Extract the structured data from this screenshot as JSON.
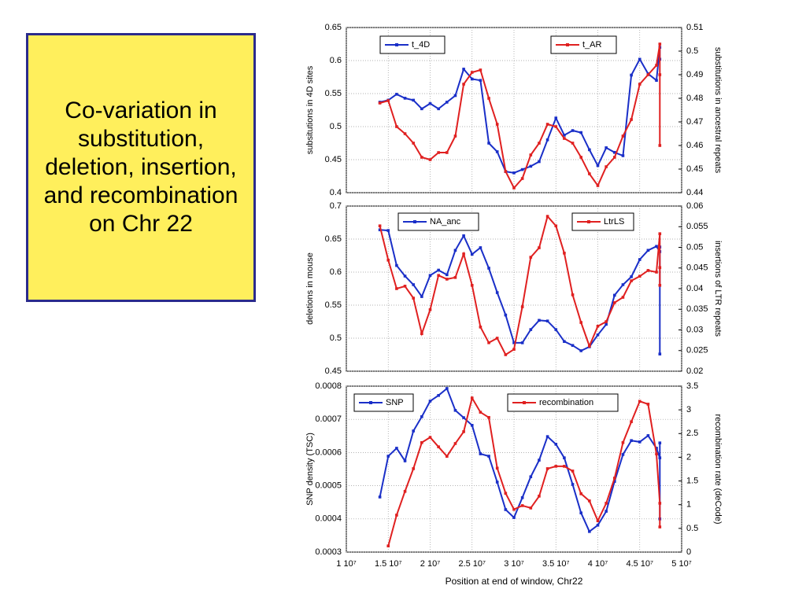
{
  "slide": {
    "title": "Co-variation in substitution, deletion, insertion, and recombination on Chr 22"
  },
  "chart_data": [
    {
      "type": "line",
      "ylabel": "subsitutions in 4D sites",
      "y2label": "substitutions in ancestral repeats",
      "xlim": [
        10000000,
        50000000
      ],
      "xticks": [
        10000000,
        15000000,
        20000000,
        25000000,
        30000000,
        35000000,
        40000000,
        45000000,
        50000000
      ],
      "ylim": [
        0.4,
        0.65
      ],
      "yticks": [
        0.4,
        0.45,
        0.5,
        0.55,
        0.6,
        0.65
      ],
      "y2lim": [
        0.44,
        0.51
      ],
      "y2ticks": [
        0.44,
        0.45,
        0.46,
        0.47,
        0.48,
        0.49,
        0.5,
        0.51
      ],
      "grid": true,
      "series": [
        {
          "name": "t_4D",
          "color": "#1a2fc8",
          "x": [
            14000000,
            15000000,
            16000000,
            17000000,
            18000000,
            19000000,
            20000000,
            21000000,
            22000000,
            23000000,
            24000000,
            25000000,
            26000000,
            27000000,
            28000000,
            29000000,
            30000000,
            31000000,
            32000000,
            33000000,
            34000000,
            35000000,
            36000000,
            37000000,
            38000000,
            39000000,
            40000000,
            41000000,
            42000000,
            43000000,
            44000000,
            45000000,
            46000000,
            47000000,
            47400000,
            47400000
          ],
          "values": [
            0.537,
            0.54,
            0.549,
            0.543,
            0.54,
            0.527,
            0.535,
            0.527,
            0.537,
            0.547,
            0.587,
            0.572,
            0.57,
            0.475,
            0.462,
            0.432,
            0.43,
            0.435,
            0.44,
            0.447,
            0.48,
            0.513,
            0.487,
            0.494,
            0.491,
            0.465,
            0.441,
            0.468,
            0.461,
            0.456,
            0.578,
            0.602,
            0.58,
            0.57,
            0.62,
            0.602
          ]
        },
        {
          "name": "t_AR",
          "color": "#e02020",
          "axis": "y2",
          "x": [
            14000000,
            15000000,
            16000000,
            17000000,
            18000000,
            19000000,
            20000000,
            21000000,
            22000000,
            23000000,
            24000000,
            25000000,
            26000000,
            27000000,
            28000000,
            29000000,
            30000000,
            31000000,
            32000000,
            33000000,
            34000000,
            35000000,
            36000000,
            37000000,
            38000000,
            39000000,
            40000000,
            41000000,
            42000000,
            43000000,
            44000000,
            45000000,
            46000000,
            47000000,
            47400000,
            47400000,
            47400000
          ],
          "values": [
            0.478,
            0.479,
            0.468,
            0.465,
            0.461,
            0.455,
            0.454,
            0.457,
            0.457,
            0.464,
            0.486,
            0.491,
            0.492,
            0.48,
            0.469,
            0.449,
            0.442,
            0.446,
            0.456,
            0.461,
            0.469,
            0.468,
            0.463,
            0.461,
            0.455,
            0.448,
            0.443,
            0.451,
            0.455,
            0.464,
            0.471,
            0.486,
            0.49,
            0.494,
            0.503,
            0.49,
            0.46
          ]
        }
      ]
    },
    {
      "type": "line",
      "ylabel": "deletions in mouse",
      "y2label": "insertions of LTR repeats",
      "xlim": [
        10000000,
        50000000
      ],
      "xticks": [
        10000000,
        15000000,
        20000000,
        25000000,
        30000000,
        35000000,
        40000000,
        45000000,
        50000000
      ],
      "ylim": [
        0.45,
        0.7
      ],
      "yticks": [
        0.45,
        0.5,
        0.55,
        0.6,
        0.65,
        0.7
      ],
      "y2lim": [
        0.02,
        0.06
      ],
      "y2ticks": [
        0.02,
        0.025,
        0.03,
        0.035,
        0.04,
        0.045,
        0.05,
        0.055,
        0.06
      ],
      "grid": true,
      "series": [
        {
          "name": "NA_anc",
          "color": "#1a2fc8",
          "x": [
            14000000,
            15000000,
            16000000,
            17000000,
            18000000,
            19000000,
            20000000,
            21000000,
            22000000,
            23000000,
            24000000,
            25000000,
            26000000,
            27000000,
            28000000,
            29000000,
            30000000,
            31000000,
            32000000,
            33000000,
            34000000,
            35000000,
            36000000,
            37000000,
            38000000,
            39000000,
            40000000,
            41000000,
            42000000,
            43000000,
            44000000,
            45000000,
            46000000,
            47000000,
            47400000,
            47400000,
            47400000
          ],
          "values": [
            0.664,
            0.663,
            0.61,
            0.594,
            0.581,
            0.563,
            0.595,
            0.603,
            0.596,
            0.633,
            0.655,
            0.627,
            0.637,
            0.606,
            0.569,
            0.535,
            0.493,
            0.493,
            0.513,
            0.527,
            0.526,
            0.513,
            0.495,
            0.489,
            0.481,
            0.487,
            0.505,
            0.521,
            0.565,
            0.581,
            0.593,
            0.619,
            0.633,
            0.639,
            0.631,
            0.638,
            0.476
          ]
        },
        {
          "name": "LtrLS",
          "color": "#e02020",
          "axis": "y2",
          "x": [
            14000000,
            15000000,
            16000000,
            17000000,
            18000000,
            19000000,
            20000000,
            21000000,
            22000000,
            23000000,
            24000000,
            25000000,
            26000000,
            27000000,
            28000000,
            29000000,
            30000000,
            31000000,
            32000000,
            33000000,
            34000000,
            35000000,
            36000000,
            37000000,
            38000000,
            39000000,
            40000000,
            41000000,
            42000000,
            43000000,
            44000000,
            45000000,
            46000000,
            47000000,
            47400000,
            47400000,
            47400000
          ],
          "values": [
            0.0552,
            0.0469,
            0.04,
            0.0406,
            0.0377,
            0.0291,
            0.0349,
            0.0432,
            0.0423,
            0.0427,
            0.0484,
            0.0408,
            0.0307,
            0.0269,
            0.028,
            0.024,
            0.0253,
            0.0356,
            0.0476,
            0.0499,
            0.0575,
            0.0552,
            0.0486,
            0.0385,
            0.0318,
            0.0261,
            0.0309,
            0.032,
            0.0366,
            0.0379,
            0.0419,
            0.043,
            0.0444,
            0.044,
            0.0533,
            0.0451,
            0.0408
          ]
        }
      ]
    },
    {
      "type": "line",
      "ylabel": "SNP density (TSC)",
      "y2label": "recombination rate  (deCode)",
      "xlabel": "Position at end of window, Chr22",
      "xlim": [
        10000000,
        50000000
      ],
      "xticks": [
        {
          "value": 10000000,
          "label": "1 10⁷"
        },
        {
          "value": 15000000,
          "label": "1.5 10⁷"
        },
        {
          "value": 20000000,
          "label": "2 10⁷"
        },
        {
          "value": 25000000,
          "label": "2.5 10⁷"
        },
        {
          "value": 30000000,
          "label": "3 10⁷"
        },
        {
          "value": 35000000,
          "label": "3.5 10⁷"
        },
        {
          "value": 40000000,
          "label": "4 10⁷"
        },
        {
          "value": 45000000,
          "label": "4.5 10⁷"
        },
        {
          "value": 50000000,
          "label": "5 10⁷"
        }
      ],
      "ylim": [
        0.0003,
        0.0008
      ],
      "yticks": [
        0.0003,
        0.0004,
        0.0005,
        0.0006,
        0.0007,
        0.0008
      ],
      "y2lim": [
        0,
        3.5
      ],
      "y2ticks": [
        0,
        0.5,
        1,
        1.5,
        2,
        2.5,
        3,
        3.5
      ],
      "grid": true,
      "series": [
        {
          "name": "SNP",
          "color": "#1a2fc8",
          "x": [
            14000000,
            15000000,
            16000000,
            17000000,
            18000000,
            19000000,
            20000000,
            21000000,
            22000000,
            23000000,
            24000000,
            25000000,
            26000000,
            27000000,
            28000000,
            29000000,
            30000000,
            31000000,
            32000000,
            33000000,
            34000000,
            35000000,
            36000000,
            37000000,
            38000000,
            39000000,
            40000000,
            41000000,
            42000000,
            43000000,
            44000000,
            45000000,
            46000000,
            47000000,
            47400000,
            47400000,
            47400000
          ],
          "values": [
            0.000466,
            0.000589,
            0.000613,
            0.000575,
            0.000665,
            0.000708,
            0.000755,
            0.000772,
            0.000793,
            0.000727,
            0.000705,
            0.000682,
            0.000596,
            0.000589,
            0.000511,
            0.000428,
            0.000404,
            0.000464,
            0.000527,
            0.000577,
            0.000648,
            0.000625,
            0.000584,
            0.000504,
            0.000418,
            0.000362,
            0.000381,
            0.000423,
            0.000513,
            0.000594,
            0.000636,
            0.000632,
            0.000651,
            0.000613,
            0.000584,
            0.000629,
            0.0004
          ]
        },
        {
          "name": "recombination",
          "color": "#e02020",
          "axis": "y2",
          "x": [
            15000000,
            16000000,
            17000000,
            18000000,
            19000000,
            20000000,
            21000000,
            22000000,
            23000000,
            24000000,
            25000000,
            26000000,
            27000000,
            28000000,
            29000000,
            30000000,
            31000000,
            32000000,
            33000000,
            34000000,
            35000000,
            36000000,
            37000000,
            38000000,
            39000000,
            40000000,
            41000000,
            42000000,
            43000000,
            44000000,
            45000000,
            46000000,
            47000000,
            47400000,
            47400000
          ],
          "values": [
            0.13,
            0.78,
            1.28,
            1.76,
            2.31,
            2.42,
            2.22,
            2.02,
            2.29,
            2.54,
            3.25,
            2.95,
            2.84,
            1.77,
            1.24,
            0.9,
            0.98,
            0.93,
            1.18,
            1.76,
            1.81,
            1.81,
            1.71,
            1.23,
            1.08,
            0.66,
            1.03,
            1.56,
            2.31,
            2.75,
            3.18,
            3.12,
            2.07,
            1.03,
            0.53
          ]
        }
      ]
    }
  ]
}
